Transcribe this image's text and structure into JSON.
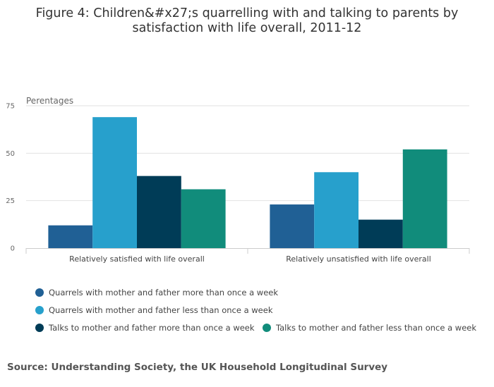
{
  "chart_data": {
    "type": "bar",
    "title": [
      "Figure 4: Children&#x27;s quarrelling with and talking to parents by",
      "satisfaction with life overall, 2011-12"
    ],
    "ylabel": "Perentages",
    "xlabel": "",
    "ylim": [
      0,
      75
    ],
    "yticks": [
      0,
      25,
      50,
      75
    ],
    "grid": true,
    "legend_position": "bottom-left",
    "categories": [
      "Relatively satisfied with life overall",
      "Relatively unsatisfied with life overall"
    ],
    "series": [
      {
        "name": "Quarrels with mother and father more than once a week",
        "color": "#206095",
        "values": [
          12,
          23
        ]
      },
      {
        "name": "Quarrels with mother and father less than once a week",
        "color": "#27a0cc",
        "values": [
          69,
          40
        ]
      },
      {
        "name": "Talks to mother and father more than once a week",
        "color": "#003c57",
        "values": [
          38,
          15
        ]
      },
      {
        "name": "Talks to mother and father less than once a week",
        "color": "#118c7b",
        "values": [
          31,
          52
        ]
      }
    ]
  },
  "source": "Source: Understanding Society, the UK Household Longitudinal Survey"
}
